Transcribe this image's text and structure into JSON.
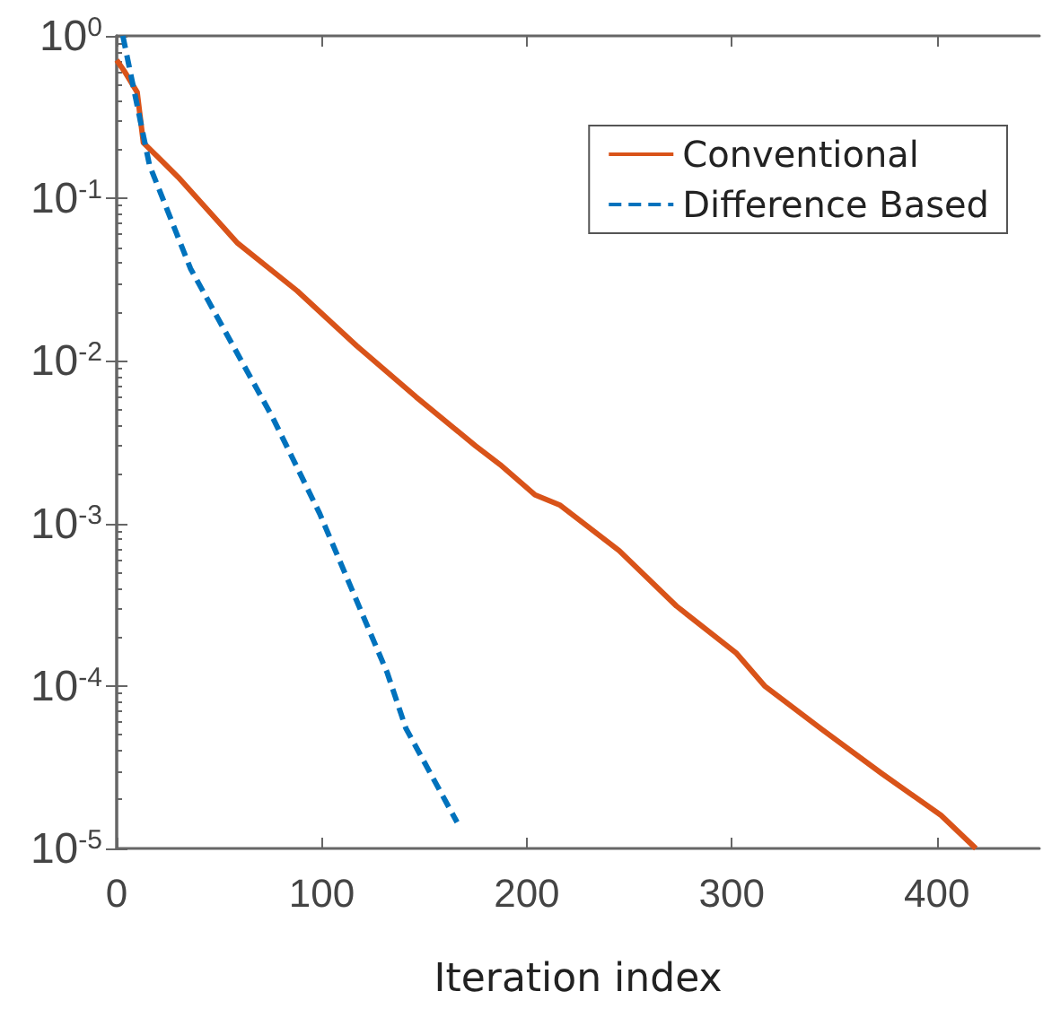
{
  "chart_data": {
    "type": "line",
    "xlabel": "Iteration index",
    "log": "y",
    "xlim": [
      0,
      450
    ],
    "xticks": [
      0,
      100,
      200,
      300,
      400
    ],
    "ylim": [
      1e-05,
      1
    ],
    "yticks": [
      {
        "value": 1,
        "label": "10$^{0}$"
      },
      {
        "value": 0.1,
        "label": "10$^{-1}$"
      },
      {
        "value": 0.01,
        "label": "10$^{-2}$"
      },
      {
        "value": 0.001,
        "label": "10$^{-3}$"
      },
      {
        "value": 0.0001,
        "label": "10$^{-4}$"
      },
      {
        "value": 1e-05,
        "label": "10$^{-5}$"
      }
    ],
    "grid": false,
    "legend": "top right",
    "marker": "none",
    "series": [
      {
        "name": "Conventional",
        "color": "#d95319",
        "line_style": "solid",
        "x": [
          0,
          4,
          10,
          13,
          22,
          30,
          59,
          88,
          117,
          146,
          175,
          187,
          204,
          216,
          245,
          273,
          302,
          316,
          344,
          373,
          402,
          419
        ],
        "values": [
          0.71,
          0.6,
          0.45,
          0.22,
          0.17,
          0.135,
          0.053,
          0.027,
          0.0124,
          0.006,
          0.003,
          0.0023,
          0.0015,
          0.0013,
          0.00068,
          0.00031,
          0.00016,
          0.0001,
          5.4e-05,
          2.9e-05,
          1.6e-05,
          1e-05
        ]
      },
      {
        "name": "Difference Based",
        "color": "#0072bd",
        "line_style": "dashed",
        "x": [
          3,
          16,
          36,
          76,
          99,
          132,
          141,
          166
        ],
        "values": [
          1,
          0.16,
          0.037,
          0.0045,
          0.00115,
          0.00012,
          5.5e-05,
          1.45e-05
        ]
      }
    ]
  }
}
